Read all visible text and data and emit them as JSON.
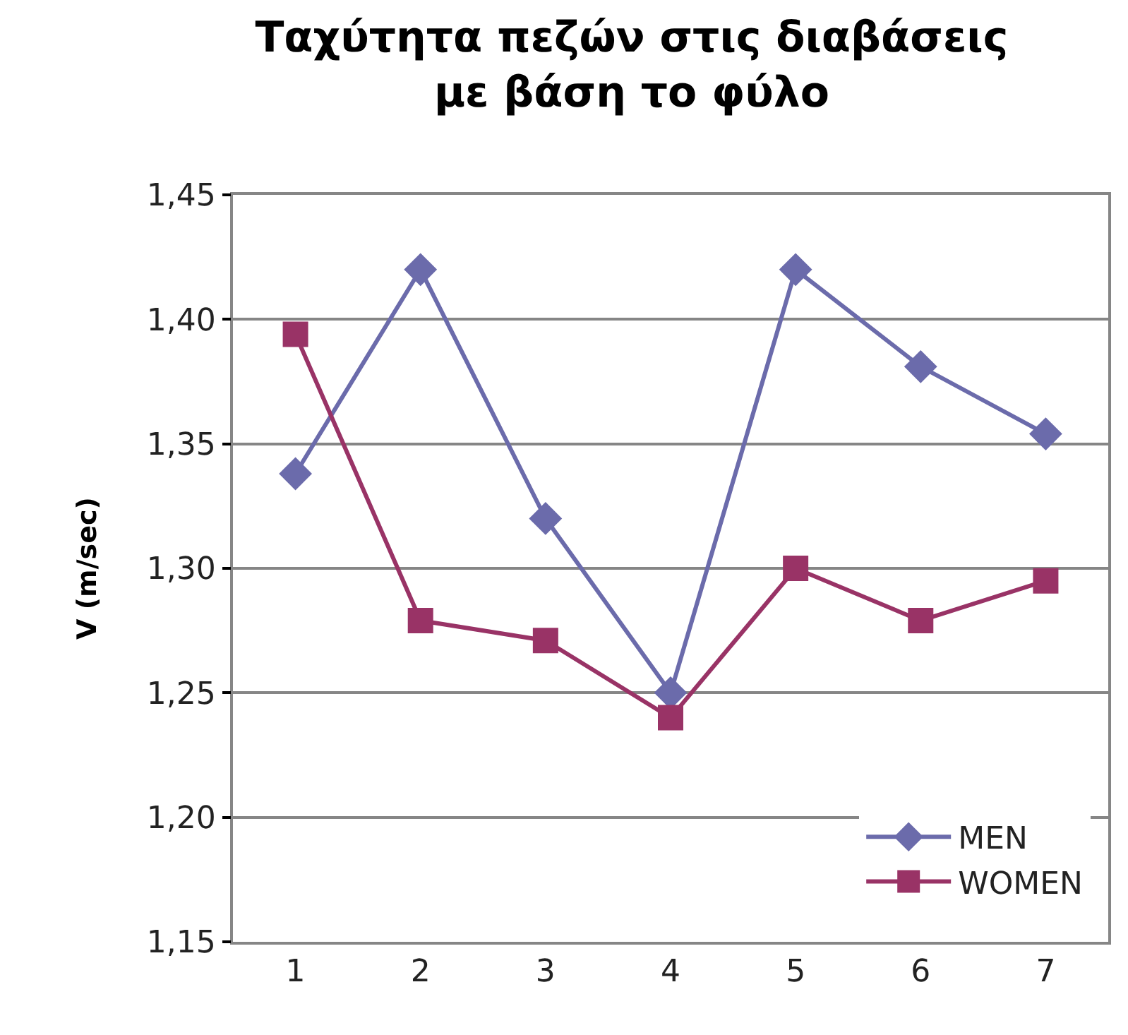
{
  "chart_data": {
    "type": "line",
    "title": "Ταχύτητα πεζών στις διαβάσεις\nμε βάση το φύλο",
    "ylabel": "V (m/sec)",
    "categories": [
      "1",
      "2",
      "3",
      "4",
      "5",
      "6",
      "7"
    ],
    "series": [
      {
        "name": "MEN",
        "color": "#6b6bab",
        "marker": "diamond",
        "values": [
          1.338,
          1.42,
          1.32,
          1.25,
          1.42,
          1.381,
          1.354
        ]
      },
      {
        "name": "WOMEN",
        "color": "#993366",
        "marker": "square",
        "values": [
          1.394,
          1.279,
          1.271,
          1.24,
          1.3,
          1.279,
          1.295
        ]
      }
    ],
    "ylim": [
      1.15,
      1.45
    ],
    "yticks": [
      {
        "value": 1.15,
        "label": "1,15"
      },
      {
        "value": 1.2,
        "label": "1,20"
      },
      {
        "value": 1.25,
        "label": "1,25"
      },
      {
        "value": 1.3,
        "label": "1,30"
      },
      {
        "value": 1.35,
        "label": "1,35"
      },
      {
        "value": 1.4,
        "label": "1,40"
      },
      {
        "value": 1.45,
        "label": "1,45"
      }
    ],
    "grid": "y",
    "legend": "bottom right",
    "line_style": "solid"
  }
}
